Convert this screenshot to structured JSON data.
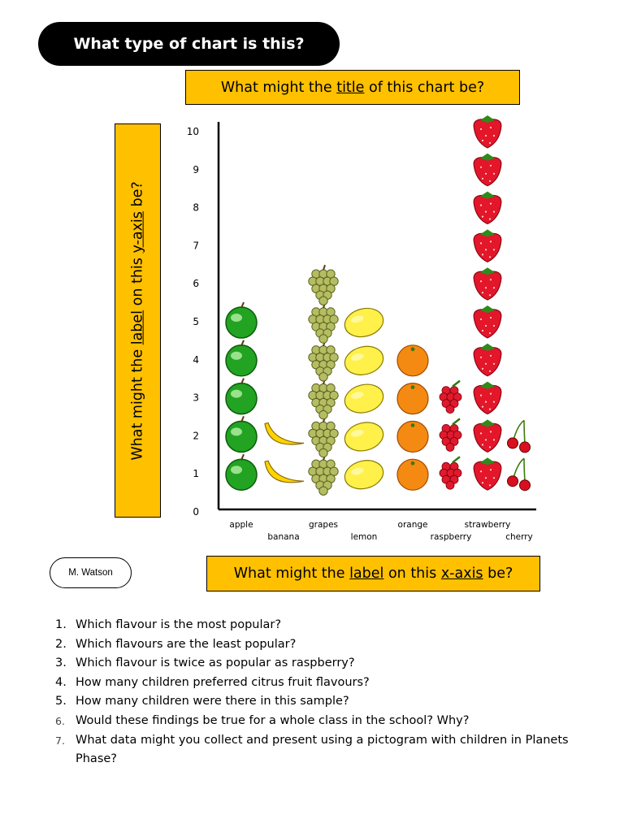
{
  "header": {
    "title": "What type of chart is this?"
  },
  "prompts": {
    "title_question": {
      "pre": "What might the ",
      "u": "title",
      "post": " of this chart be?"
    },
    "y_question": {
      "pre": "What might the ",
      "u1": "label",
      "mid": " on this ",
      "u2": "y-axis",
      "post": " be?"
    },
    "x_question": {
      "pre": "What might the ",
      "u1": "label",
      "mid": " on this ",
      "u2": "x-axis",
      "post": " be?"
    }
  },
  "author": "M. Watson",
  "chart_data": {
    "type": "pictogram",
    "categories": [
      "apple",
      "banana",
      "grapes",
      "lemon",
      "orange",
      "raspberry",
      "strawberry",
      "cherry"
    ],
    "values": [
      5,
      2,
      6,
      5,
      4,
      3,
      10,
      2
    ],
    "ylim": [
      0,
      10
    ],
    "yticks": [
      "0",
      "1",
      "2",
      "3",
      "4",
      "5",
      "6",
      "7",
      "8",
      "9",
      "10"
    ],
    "title": "",
    "xlabel": "",
    "ylabel": "",
    "icons": [
      "apple-icon",
      "banana-icon",
      "grapes-icon",
      "lemon-icon",
      "orange-icon",
      "raspberry-icon",
      "strawberry-icon",
      "cherry-icon"
    ],
    "colors": {
      "apple": "#22a322",
      "banana": "#ffd400",
      "grapes": "#b5bd62",
      "lemon": "#fff04a",
      "orange": "#f58a12",
      "raspberry": "#e01a2c",
      "strawberry": "#e3162a",
      "cherry": "#d8101e"
    }
  },
  "questions": [
    {
      "num": "1.",
      "text": "Which flavour is the most popular?"
    },
    {
      "num": "2.",
      "text": "Which flavours are the least popular?"
    },
    {
      "num": "3.",
      "text": "Which flavour is twice as popular as raspberry?"
    },
    {
      "num": "4.",
      "text": "How many children preferred citrus fruit flavours?"
    },
    {
      "num": "5.",
      "text": "How many children were there in this sample?"
    },
    {
      "num": "6.",
      "text": "Would these findings be true for a whole class in the school? Why?"
    },
    {
      "num": "7.",
      "text": "What data might you collect and present using a pictogram with children in Planets Phase?"
    }
  ]
}
